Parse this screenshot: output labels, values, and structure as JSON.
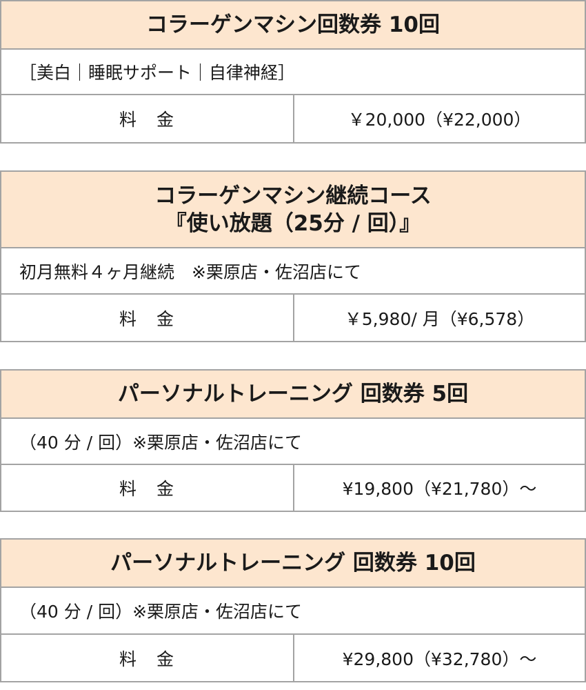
{
  "plans": [
    {
      "title": [
        "コラーゲンマシン回数券 10回"
      ],
      "description": "［美白｜睡眠サポート｜自律神経］",
      "price_label": "料　金",
      "price": "￥20,000（¥22,000）"
    },
    {
      "title": [
        "コラーゲンマシン継続コース",
        "『使い放題（25分 / 回）』"
      ],
      "description": "初月無料４ヶ月継続　※栗原店・佐沼店にて",
      "price_label": "料　金",
      "price": "￥5,980/ 月（¥6,578）"
    },
    {
      "title": [
        "パーソナルトレーニング 回数券 5回"
      ],
      "description": "（40 分 / 回）※栗原店・佐沼店にて",
      "price_label": "料　金",
      "price": "¥19,800（¥21,780）～"
    },
    {
      "title": [
        "パーソナルトレーニング 回数券 10回"
      ],
      "description": "（40 分 / 回）※栗原店・佐沼店にて",
      "price_label": "料　金",
      "price": "¥29,800（¥32,780）～"
    }
  ],
  "colors": {
    "header_bg": "#fde6cf",
    "border": "#a3a3a3"
  }
}
